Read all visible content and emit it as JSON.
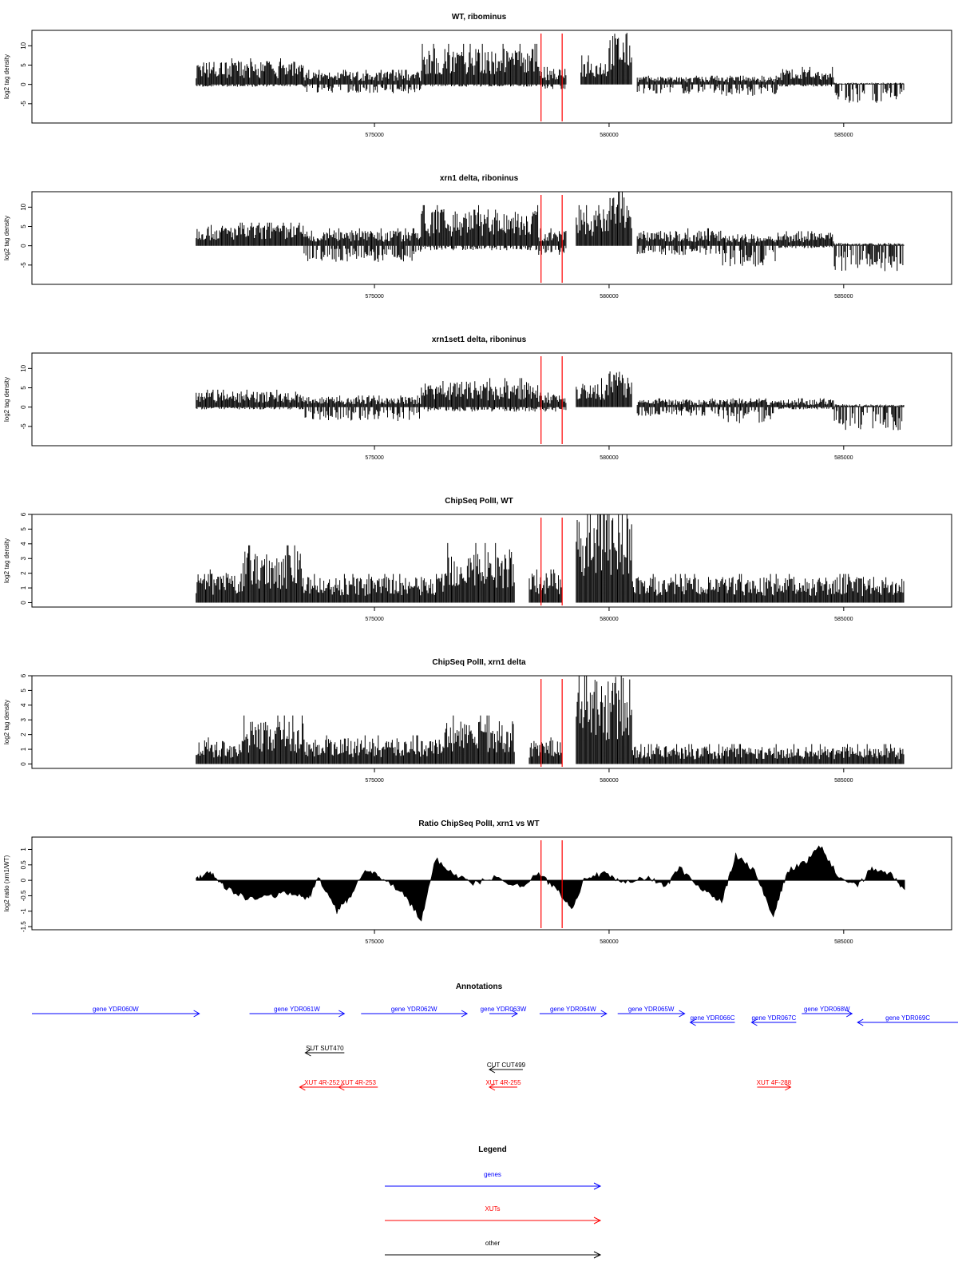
{
  "x_axis": {
    "xlim": [
      567700,
      587300
    ],
    "ticks": [
      575000,
      580000,
      585000
    ],
    "data_start": 571200,
    "data_end": 586300
  },
  "red_lines_x": [
    578550,
    579000
  ],
  "panels": [
    {
      "title": "WT, ribominus",
      "ylabel": "log2 tag density",
      "ylim": [
        -10,
        14
      ],
      "yticks": [
        -5,
        0,
        5,
        10
      ],
      "type": "bar",
      "segments": [
        {
          "start": 571200,
          "end": 573500,
          "pos": 4.5,
          "neg": 0.5
        },
        {
          "start": 573500,
          "end": 576000,
          "pos": 2.5,
          "neg": 2
        },
        {
          "start": 576000,
          "end": 578500,
          "pos": 7,
          "neg": 0.5
        },
        {
          "start": 578500,
          "end": 579100,
          "pos": 3,
          "neg": 1
        },
        {
          "start": 579400,
          "end": 580000,
          "pos": 5,
          "neg": 0
        },
        {
          "start": 580000,
          "end": 580500,
          "pos": 10,
          "neg": 0
        },
        {
          "start": 580600,
          "end": 582400,
          "pos": 1.5,
          "neg": 2
        },
        {
          "start": 582400,
          "end": 583600,
          "pos": 1.5,
          "neg": 2.5
        },
        {
          "start": 583600,
          "end": 584800,
          "pos": 3,
          "neg": 0.5
        },
        {
          "start": 584800,
          "end": 586300,
          "pos": 0.3,
          "neg": 4
        }
      ]
    },
    {
      "title": "xrn1 delta, riboninus",
      "ylabel": "log2 tag density",
      "ylim": [
        -10,
        14
      ],
      "yticks": [
        -5,
        0,
        5,
        10
      ],
      "type": "bar",
      "segments": [
        {
          "start": 571200,
          "end": 573500,
          "pos": 4,
          "neg": 0
        },
        {
          "start": 573500,
          "end": 576000,
          "pos": 3,
          "neg": 3.5
        },
        {
          "start": 576000,
          "end": 578500,
          "pos": 7,
          "neg": 1
        },
        {
          "start": 578500,
          "end": 579100,
          "pos": 3,
          "neg": 2
        },
        {
          "start": 579300,
          "end": 580000,
          "pos": 7,
          "neg": 0
        },
        {
          "start": 580000,
          "end": 580500,
          "pos": 10,
          "neg": 0
        },
        {
          "start": 580600,
          "end": 582400,
          "pos": 3,
          "neg": 2
        },
        {
          "start": 582400,
          "end": 583600,
          "pos": 2,
          "neg": 4.5
        },
        {
          "start": 583600,
          "end": 584800,
          "pos": 2.5,
          "neg": 0.5
        },
        {
          "start": 584800,
          "end": 586300,
          "pos": 0.5,
          "neg": 5.5
        }
      ]
    },
    {
      "title": "xrn1set1 delta, riboninus",
      "ylabel": "log2 tag density",
      "ylim": [
        -10,
        14
      ],
      "yticks": [
        -5,
        0,
        5,
        10
      ],
      "type": "bar",
      "segments": [
        {
          "start": 571200,
          "end": 573500,
          "pos": 3,
          "neg": 0.5
        },
        {
          "start": 573500,
          "end": 576000,
          "pos": 2,
          "neg": 3
        },
        {
          "start": 576000,
          "end": 578500,
          "pos": 5,
          "neg": 1
        },
        {
          "start": 578500,
          "end": 579100,
          "pos": 2.5,
          "neg": 1
        },
        {
          "start": 579300,
          "end": 580000,
          "pos": 5,
          "neg": 0
        },
        {
          "start": 580000,
          "end": 580500,
          "pos": 7,
          "neg": 0
        },
        {
          "start": 580600,
          "end": 582400,
          "pos": 1.5,
          "neg": 2
        },
        {
          "start": 582400,
          "end": 583600,
          "pos": 1.5,
          "neg": 3.5
        },
        {
          "start": 583600,
          "end": 584800,
          "pos": 1.5,
          "neg": 0.5
        },
        {
          "start": 584800,
          "end": 586300,
          "pos": 0.5,
          "neg": 5
        }
      ]
    },
    {
      "title": "ChipSeq PolII, WT",
      "ylabel": "log2 tag density",
      "ylim": [
        -0.3,
        6
      ],
      "yticks": [
        0,
        1,
        2,
        3,
        4,
        5,
        6
      ],
      "type": "pos",
      "segments": [
        {
          "start": 571200,
          "end": 572200,
          "pos": 1.5,
          "neg": 0
        },
        {
          "start": 572200,
          "end": 573500,
          "pos": 2.6,
          "neg": 0
        },
        {
          "start": 573500,
          "end": 576500,
          "pos": 1.3,
          "neg": 0
        },
        {
          "start": 576500,
          "end": 578000,
          "pos": 2.7,
          "neg": 0
        },
        {
          "start": 578300,
          "end": 579000,
          "pos": 1.5,
          "neg": 0
        },
        {
          "start": 579300,
          "end": 580500,
          "pos": 4.8,
          "neg": 0
        },
        {
          "start": 580500,
          "end": 586300,
          "pos": 1.3,
          "neg": 0
        }
      ]
    },
    {
      "title": "ChipSeq PolII, xrn1 delta",
      "ylabel": "log2 tag density",
      "ylim": [
        -0.3,
        6
      ],
      "yticks": [
        0,
        1,
        2,
        3,
        4,
        5,
        6
      ],
      "type": "pos",
      "segments": [
        {
          "start": 571200,
          "end": 572200,
          "pos": 1.2,
          "neg": 0
        },
        {
          "start": 572200,
          "end": 573500,
          "pos": 2.2,
          "neg": 0
        },
        {
          "start": 573500,
          "end": 576500,
          "pos": 1.3,
          "neg": 0
        },
        {
          "start": 576500,
          "end": 578000,
          "pos": 2.2,
          "neg": 0
        },
        {
          "start": 578300,
          "end": 579000,
          "pos": 1.2,
          "neg": 0
        },
        {
          "start": 579300,
          "end": 580500,
          "pos": 4.5,
          "neg": 0
        },
        {
          "start": 580500,
          "end": 586300,
          "pos": 0.9,
          "neg": 0
        }
      ]
    },
    {
      "title": "Ratio ChipSeq PolII, xrn1 vs WT",
      "ylabel": "log2 ratio (xrn1/WT)",
      "ylim": [
        -1.6,
        1.4
      ],
      "yticks": [
        -1.5,
        -1.0,
        -0.5,
        0.0,
        0.5,
        1.0
      ],
      "type": "ratio",
      "profile": [
        [
          571200,
          0.05
        ],
        [
          571500,
          0.3
        ],
        [
          571800,
          -0.2
        ],
        [
          572300,
          -0.6
        ],
        [
          572800,
          -0.5
        ],
        [
          573200,
          -0.4
        ],
        [
          573600,
          -0.6
        ],
        [
          573800,
          0.1
        ],
        [
          574200,
          -1.0
        ],
        [
          574500,
          -0.5
        ],
        [
          574800,
          0.4
        ],
        [
          575100,
          0.1
        ],
        [
          575600,
          -0.4
        ],
        [
          576000,
          -1.3
        ],
        [
          576300,
          0.7
        ],
        [
          576700,
          0.2
        ],
        [
          577100,
          -0.1
        ],
        [
          577600,
          0.1
        ],
        [
          578100,
          -0.2
        ],
        [
          578500,
          0.2
        ],
        [
          578900,
          -0.3
        ],
        [
          579200,
          -0.9
        ],
        [
          579500,
          0.1
        ],
        [
          579900,
          0.2
        ],
        [
          580300,
          -0.1
        ],
        [
          580800,
          0.1
        ],
        [
          581200,
          -0.2
        ],
        [
          581500,
          0.4
        ],
        [
          582000,
          -0.3
        ],
        [
          582400,
          -0.7
        ],
        [
          582700,
          0.8
        ],
        [
          583100,
          0.3
        ],
        [
          583500,
          -1.2
        ],
        [
          583800,
          0.3
        ],
        [
          584200,
          0.6
        ],
        [
          584500,
          1.1
        ],
        [
          584900,
          0.1
        ],
        [
          585300,
          -0.2
        ],
        [
          585600,
          0.4
        ],
        [
          586000,
          0.2
        ],
        [
          586300,
          -0.3
        ]
      ]
    }
  ],
  "tick_labels": [
    "575000",
    "580000",
    "585000"
  ],
  "annotations": {
    "title": "Annotations",
    "items": [
      {
        "label": "gene YDR060W",
        "start": 567700,
        "end": 570700,
        "dir": "right",
        "color": "#0000ff",
        "row": 0
      },
      {
        "label": "gene YDR061W",
        "start": 571600,
        "end": 573300,
        "dir": "right",
        "color": "#0000ff",
        "row": 0
      },
      {
        "label": "gene YDR062W",
        "start": 573600,
        "end": 575500,
        "dir": "right",
        "color": "#0000ff",
        "row": 0
      },
      {
        "label": "gene YDR063W",
        "start": 575900,
        "end": 576400,
        "dir": "right",
        "color": "#0000ff",
        "row": 0
      },
      {
        "label": "gene YDR064W",
        "start": 576800,
        "end": 578000,
        "dir": "right",
        "color": "#0000ff",
        "row": 0
      },
      {
        "label": "gene YDR065W",
        "start": 578200,
        "end": 579400,
        "dir": "right",
        "color": "#0000ff",
        "row": 0
      },
      {
        "label": "gene YDR066C",
        "start": 579500,
        "end": 580300,
        "dir": "left",
        "color": "#0000ff",
        "row": 1
      },
      {
        "label": "gene YDR067C",
        "start": 580600,
        "end": 581400,
        "dir": "left",
        "color": "#0000ff",
        "row": 1
      },
      {
        "label": "gene YDR068W",
        "start": 581500,
        "end": 582400,
        "dir": "right",
        "color": "#0000ff",
        "row": 0
      },
      {
        "label": "gene YDR069C",
        "start": 582500,
        "end": 584300,
        "dir": "left",
        "color": "#0000ff",
        "row": 1
      },
      {
        "label": "SUT SUT470",
        "start": 572600,
        "end": 573300,
        "dir": "left",
        "color": "#000000",
        "row": 2
      },
      {
        "label": "CUT CUT499",
        "start": 575900,
        "end": 576500,
        "dir": "left",
        "color": "#000000",
        "row": 3
      },
      {
        "label": "XUT 4R-252",
        "start": 572500,
        "end": 573300,
        "dir": "left",
        "color": "#ff0000",
        "row": 4
      },
      {
        "label": "XUT 4R-253",
        "start": 573200,
        "end": 573900,
        "dir": "left",
        "color": "#ff0000",
        "row": 4
      },
      {
        "label": "XUT 4R-255",
        "start": 575900,
        "end": 576400,
        "dir": "left",
        "color": "#ff0000",
        "row": 4
      },
      {
        "label": "XUT 4F-288",
        "start": 580700,
        "end": 581300,
        "dir": "right",
        "color": "#ff0000",
        "row": 4
      }
    ]
  },
  "legend": {
    "title": "Legend",
    "items": [
      {
        "label": "genes",
        "color": "#0000ff"
      },
      {
        "label": "XUTs",
        "color": "#ff0000"
      },
      {
        "label": "other",
        "color": "#000000"
      }
    ]
  },
  "chart_data": {
    "type": "bar",
    "title": "",
    "xlabel": "",
    "ylabel": "log2 tag density",
    "xlim": [
      567700,
      587300
    ],
    "series": [
      {
        "name": "WT, ribominus"
      },
      {
        "name": "xrn1 delta, riboninus"
      },
      {
        "name": "xrn1set1 delta, riboninus"
      },
      {
        "name": "ChipSeq PolII, WT"
      },
      {
        "name": "ChipSeq PolII, xrn1 delta"
      },
      {
        "name": "Ratio ChipSeq PolII, xrn1 vs WT"
      }
    ]
  }
}
